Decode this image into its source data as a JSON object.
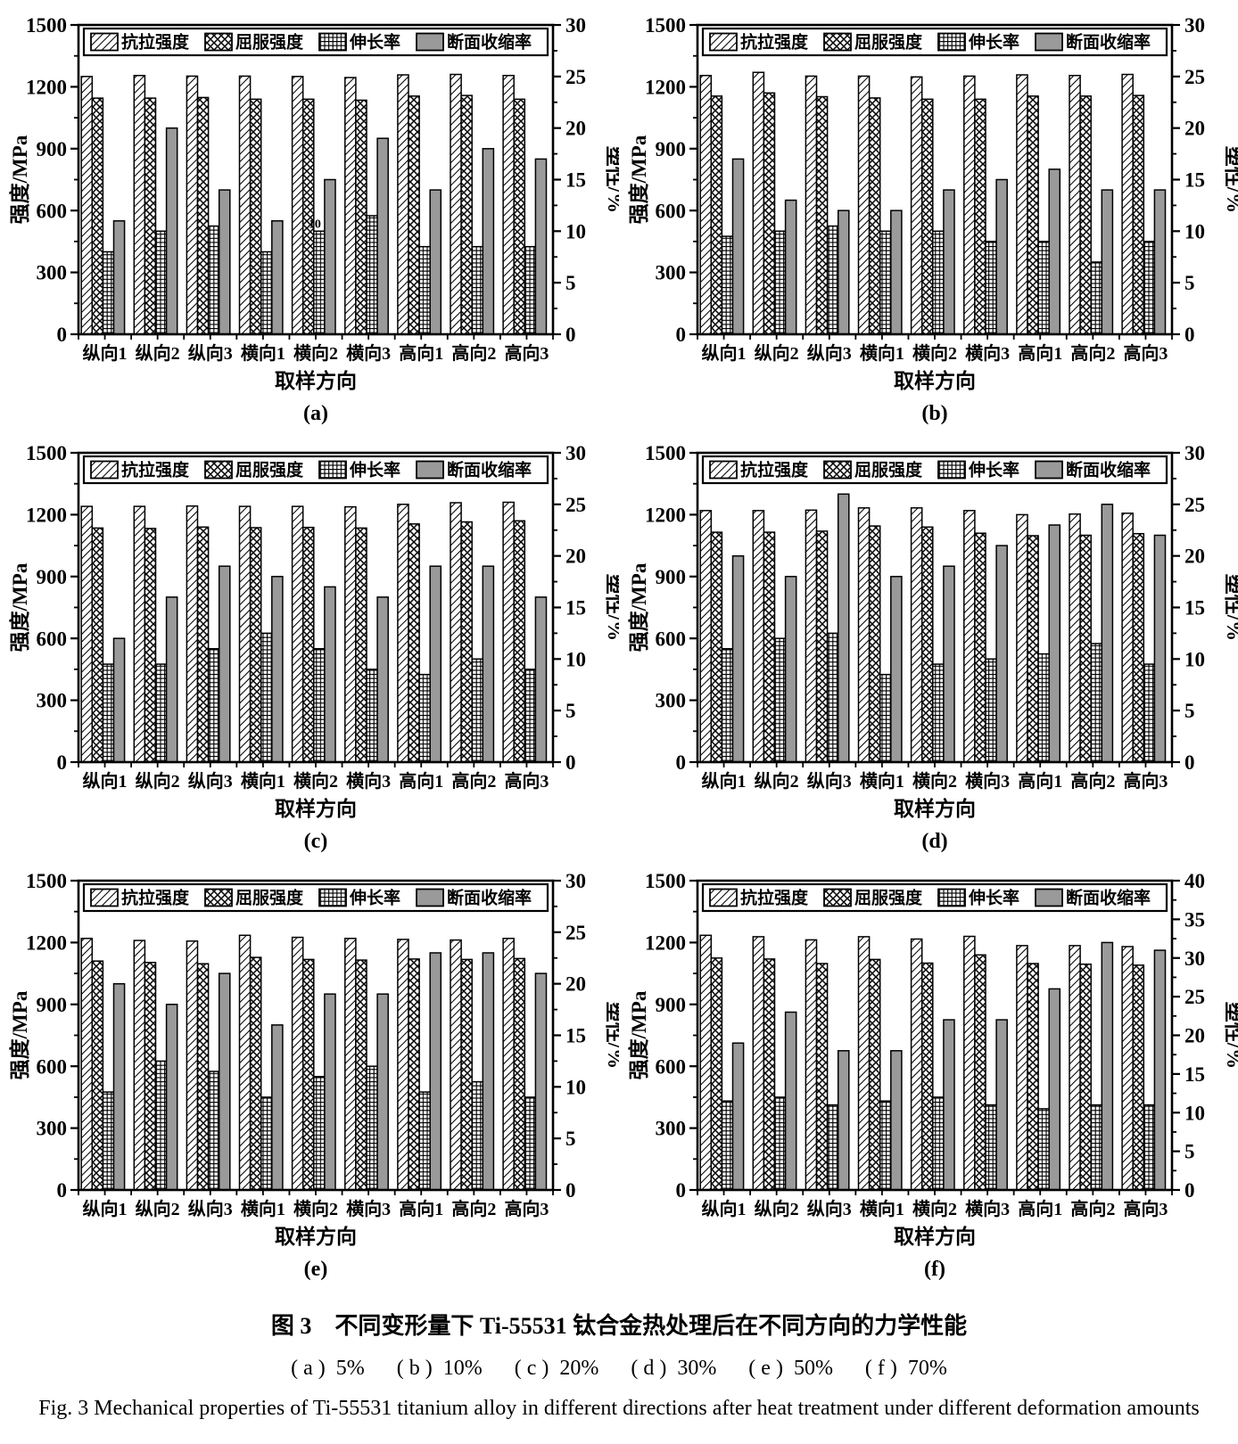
{
  "caption": {
    "zh": "图 3　不同变形量下 Ti-55531 钛合金热处理后在不同方向的力学性能",
    "sub_items": "( a )  5%      ( b )  10%      ( c )  20%      ( d )  30%      ( e )  50%      ( f )  70%",
    "en": "Fig. 3   Mechanical properties of Ti-55531 titanium alloy in different directions after heat treatment under different deformation amounts"
  },
  "axes": {
    "left_label": "强度/MPa",
    "right_label": "塑性/%",
    "x_label": "取样方向"
  },
  "legend_labels": [
    "抗拉强度",
    "屈服强度",
    "伸长率",
    "断面收缩率"
  ],
  "colors": {
    "solid_bar": "#9a9a9a",
    "line": "#000000",
    "background": "#ffffff"
  },
  "chart_data": [
    {
      "type": "bar",
      "panel": "(a)",
      "deformation": "5%",
      "categories": [
        "纵向1",
        "纵向2",
        "纵向3",
        "横向1",
        "横向2",
        "横向3",
        "高向1",
        "高向2",
        "高向3"
      ],
      "left_ylim": [
        0,
        1500
      ],
      "left_ticks": [
        0,
        300,
        600,
        900,
        1200,
        1500
      ],
      "right_ylim": [
        0,
        30
      ],
      "right_ticks": [
        0,
        5,
        10,
        15,
        20,
        25,
        30
      ],
      "series": [
        {
          "name": "抗拉强度",
          "axis": "left",
          "unit": "MPa",
          "values": [
            1250,
            1255,
            1252,
            1252,
            1250,
            1245,
            1258,
            1260,
            1255
          ]
        },
        {
          "name": "屈服强度",
          "axis": "left",
          "unit": "MPa",
          "values": [
            1145,
            1145,
            1148,
            1140,
            1140,
            1135,
            1155,
            1158,
            1140
          ]
        },
        {
          "name": "伸长率",
          "axis": "right",
          "unit": "%",
          "values": [
            8,
            10,
            10.5,
            8,
            10,
            11.5,
            8.5,
            8.5,
            8.5
          ]
        },
        {
          "name": "断面收缩率",
          "axis": "right",
          "unit": "%",
          "values": [
            11,
            20,
            14,
            11,
            15,
            19,
            14,
            18,
            17
          ]
        }
      ],
      "annotation": {
        "text": "10",
        "category_index": 4,
        "series_index": 2
      }
    },
    {
      "type": "bar",
      "panel": "(b)",
      "deformation": "10%",
      "categories": [
        "纵向1",
        "纵向2",
        "纵向3",
        "横向1",
        "横向2",
        "横向3",
        "高向1",
        "高向2",
        "高向3"
      ],
      "left_ylim": [
        0,
        1500
      ],
      "left_ticks": [
        0,
        300,
        600,
        900,
        1200,
        1500
      ],
      "right_ylim": [
        0,
        30
      ],
      "right_ticks": [
        0,
        5,
        10,
        15,
        20,
        25,
        30
      ],
      "series": [
        {
          "name": "抗拉强度",
          "axis": "left",
          "unit": "MPa",
          "values": [
            1255,
            1270,
            1252,
            1252,
            1248,
            1252,
            1258,
            1255,
            1260
          ]
        },
        {
          "name": "屈服强度",
          "axis": "left",
          "unit": "MPa",
          "values": [
            1155,
            1170,
            1152,
            1146,
            1140,
            1140,
            1155,
            1155,
            1158
          ]
        },
        {
          "name": "伸长率",
          "axis": "right",
          "unit": "%",
          "values": [
            9.5,
            10,
            10.5,
            10,
            10,
            9,
            9,
            7,
            9
          ]
        },
        {
          "name": "断面收缩率",
          "axis": "right",
          "unit": "%",
          "values": [
            17,
            13,
            12,
            12,
            14,
            15,
            16,
            14,
            14
          ]
        }
      ]
    },
    {
      "type": "bar",
      "panel": "(c)",
      "deformation": "20%",
      "categories": [
        "纵向1",
        "纵向2",
        "纵向3",
        "横向1",
        "横向2",
        "横向3",
        "高向1",
        "高向2",
        "高向3"
      ],
      "left_ylim": [
        0,
        1500
      ],
      "left_ticks": [
        0,
        300,
        600,
        900,
        1200,
        1500
      ],
      "right_ylim": [
        0,
        30
      ],
      "right_ticks": [
        0,
        5,
        10,
        15,
        20,
        25,
        30
      ],
      "series": [
        {
          "name": "抗拉强度",
          "axis": "left",
          "unit": "MPa",
          "values": [
            1240,
            1240,
            1242,
            1240,
            1240,
            1238,
            1250,
            1258,
            1260
          ]
        },
        {
          "name": "屈服强度",
          "axis": "left",
          "unit": "MPa",
          "values": [
            1135,
            1133,
            1140,
            1137,
            1138,
            1135,
            1155,
            1165,
            1170
          ]
        },
        {
          "name": "伸长率",
          "axis": "right",
          "unit": "%",
          "values": [
            9.5,
            9.5,
            11,
            12.5,
            11,
            9,
            8.5,
            10,
            9
          ]
        },
        {
          "name": "断面收缩率",
          "axis": "right",
          "unit": "%",
          "values": [
            12,
            16,
            19,
            18,
            17,
            16,
            19,
            19,
            16
          ]
        }
      ]
    },
    {
      "type": "bar",
      "panel": "(d)",
      "deformation": "30%",
      "categories": [
        "纵向1",
        "纵向2",
        "纵向3",
        "横向1",
        "横向2",
        "横向3",
        "高向1",
        "高向2",
        "高向3"
      ],
      "left_ylim": [
        0,
        1500
      ],
      "left_ticks": [
        0,
        300,
        600,
        900,
        1200,
        1500
      ],
      "right_ylim": [
        0,
        30
      ],
      "right_ticks": [
        0,
        5,
        10,
        15,
        20,
        25,
        30
      ],
      "series": [
        {
          "name": "抗拉强度",
          "axis": "left",
          "unit": "MPa",
          "values": [
            1220,
            1220,
            1222,
            1233,
            1233,
            1220,
            1200,
            1203,
            1207
          ]
        },
        {
          "name": "屈服强度",
          "axis": "left",
          "unit": "MPa",
          "values": [
            1115,
            1115,
            1120,
            1145,
            1140,
            1110,
            1098,
            1100,
            1108
          ]
        },
        {
          "name": "伸长率",
          "axis": "right",
          "unit": "%",
          "values": [
            11,
            12,
            12.5,
            8.5,
            9.5,
            10,
            10.5,
            11.5,
            9.5
          ]
        },
        {
          "name": "断面收缩率",
          "axis": "right",
          "unit": "%",
          "values": [
            20,
            18,
            26,
            18,
            19,
            21,
            23,
            25,
            22
          ]
        }
      ]
    },
    {
      "type": "bar",
      "panel": "(e)",
      "deformation": "50%",
      "categories": [
        "纵向1",
        "纵向2",
        "纵向3",
        "横向1",
        "横向2",
        "横向3",
        "高向1",
        "高向2",
        "高向3"
      ],
      "left_ylim": [
        0,
        1500
      ],
      "left_ticks": [
        0,
        300,
        600,
        900,
        1200,
        1500
      ],
      "right_ylim": [
        0,
        30
      ],
      "right_ticks": [
        0,
        5,
        10,
        15,
        20,
        25,
        30
      ],
      "series": [
        {
          "name": "抗拉强度",
          "axis": "left",
          "unit": "MPa",
          "values": [
            1220,
            1210,
            1207,
            1235,
            1225,
            1220,
            1215,
            1212,
            1220
          ]
        },
        {
          "name": "屈服强度",
          "axis": "left",
          "unit": "MPa",
          "values": [
            1110,
            1103,
            1097,
            1128,
            1118,
            1115,
            1120,
            1118,
            1122
          ]
        },
        {
          "name": "伸长率",
          "axis": "right",
          "unit": "%",
          "values": [
            9.5,
            12.5,
            11.5,
            9,
            11,
            12,
            9.5,
            10.5,
            9
          ]
        },
        {
          "name": "断面收缩率",
          "axis": "right",
          "unit": "%",
          "values": [
            20,
            18,
            21,
            16,
            19,
            19,
            23,
            23,
            21
          ]
        }
      ]
    },
    {
      "type": "bar",
      "panel": "(f)",
      "deformation": "70%",
      "categories": [
        "纵向1",
        "纵向2",
        "纵向3",
        "横向1",
        "横向2",
        "横向3",
        "高向1",
        "高向2",
        "高向3"
      ],
      "left_ylim": [
        0,
        1500
      ],
      "left_ticks": [
        0,
        300,
        600,
        900,
        1200,
        1500
      ],
      "right_ylim": [
        0,
        40
      ],
      "right_ticks": [
        0,
        5,
        10,
        15,
        20,
        25,
        30,
        35,
        40
      ],
      "series": [
        {
          "name": "抗拉强度",
          "axis": "left",
          "unit": "MPa",
          "values": [
            1235,
            1228,
            1213,
            1228,
            1217,
            1230,
            1185,
            1185,
            1180
          ]
        },
        {
          "name": "屈服强度",
          "axis": "left",
          "unit": "MPa",
          "values": [
            1125,
            1120,
            1098,
            1118,
            1100,
            1140,
            1098,
            1095,
            1090
          ]
        },
        {
          "name": "伸长率",
          "axis": "right",
          "unit": "%",
          "values": [
            11.5,
            12,
            11,
            11.5,
            12,
            11,
            10.5,
            11,
            11
          ]
        },
        {
          "name": "断面收缩率",
          "axis": "right",
          "unit": "%",
          "values": [
            19,
            23,
            18,
            18,
            22,
            22,
            26,
            32,
            31
          ]
        }
      ]
    }
  ]
}
